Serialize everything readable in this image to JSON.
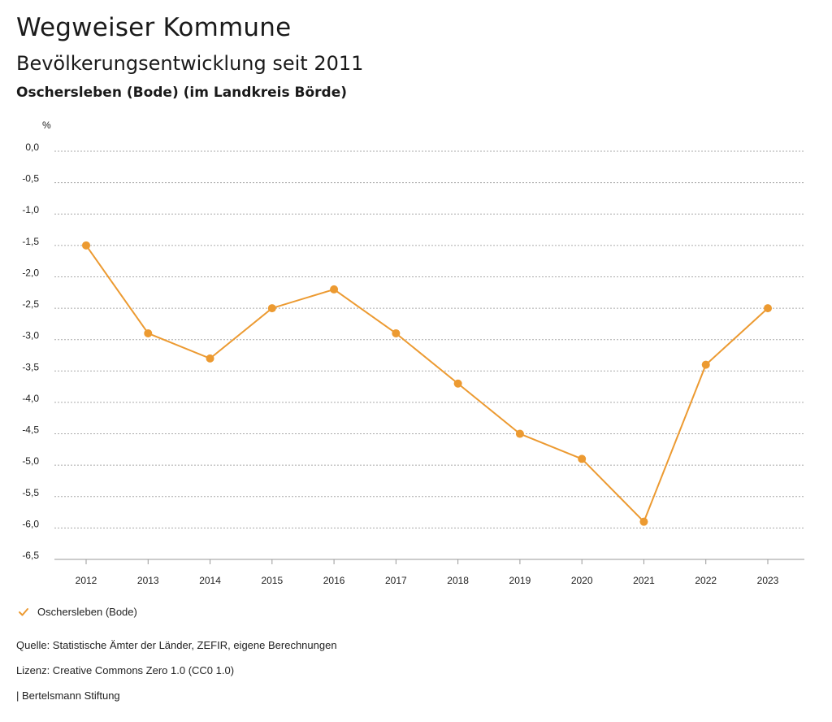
{
  "header": {
    "title": "Wegweiser Kommune",
    "subtitle": "Bevölkerungsentwicklung seit 2011",
    "region": "Oschersleben (Bode) (im Landkreis Börde)"
  },
  "chart_data": {
    "type": "line",
    "title": "Bevölkerungsentwicklung seit 2011",
    "ylabel": "%",
    "xlabel": "",
    "x": [
      "2012",
      "2013",
      "2014",
      "2015",
      "2016",
      "2017",
      "2018",
      "2019",
      "2020",
      "2021",
      "2022",
      "2023"
    ],
    "series": [
      {
        "name": "Oschersleben (Bode)",
        "color": "#ec9a31",
        "values": [
          -1.5,
          -2.9,
          -3.3,
          -2.5,
          -2.2,
          -2.9,
          -3.7,
          -4.5,
          -4.9,
          -5.9,
          -3.4,
          -2.5
        ]
      }
    ],
    "ylim": [
      -6.5,
      0
    ],
    "yticks": [
      "0,0",
      "-0,5",
      "-1,0",
      "-1,5",
      "-2,0",
      "-2,5",
      "-3,0",
      "-3,5",
      "-4,0",
      "-4,5",
      "-5,0",
      "-5,5",
      "-6,0",
      "-6,5"
    ],
    "grid": true,
    "legend_position": "bottom-left"
  },
  "legend": {
    "icon": "check-icon",
    "label": "Oschersleben (Bode)"
  },
  "footer": {
    "source": "Quelle: Statistische Ämter der Länder, ZEFIR, eigene Berechnungen",
    "license": "Lizenz: Creative Commons Zero 1.0 (CC0 1.0)",
    "publisher": "| Bertelsmann Stiftung"
  }
}
